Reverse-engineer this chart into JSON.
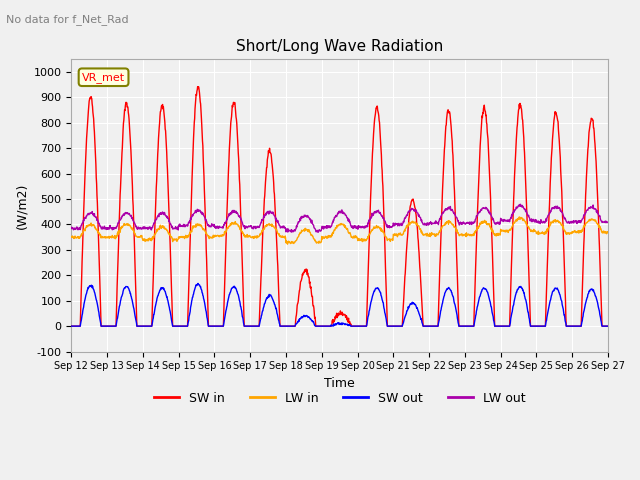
{
  "title": "Short/Long Wave Radiation",
  "subtitle": "No data for f_Net_Rad",
  "xlabel": "Time",
  "ylabel": "(W/m2)",
  "ylim": [
    -100,
    1050
  ],
  "n_days": 15,
  "xtick_labels": [
    "Sep 12",
    "Sep 13",
    "Sep 14",
    "Sep 15",
    "Sep 16",
    "Sep 17",
    "Sep 18",
    "Sep 19",
    "Sep 20",
    "Sep 21",
    "Sep 22",
    "Sep 23",
    "Sep 24",
    "Sep 25",
    "Sep 26",
    "Sep 27"
  ],
  "ytick_labels": [
    -100,
    0,
    100,
    200,
    300,
    400,
    500,
    600,
    700,
    800,
    900,
    1000
  ],
  "colors": {
    "SW_in": "#FF0000",
    "LW_in": "#FFA500",
    "SW_out": "#0000FF",
    "LW_out": "#AA00AA"
  },
  "legend_label": "VR_met",
  "legend_items": [
    "SW in",
    "LW in",
    "SW out",
    "LW out"
  ],
  "sw_in_peaks": [
    900,
    880,
    870,
    940,
    880,
    690,
    220,
    50,
    860,
    500,
    850,
    860,
    870,
    840,
    820
  ],
  "lw_in_vals": [
    350,
    350,
    340,
    350,
    355,
    350,
    330,
    350,
    340,
    360,
    360,
    360,
    375,
    365,
    370
  ],
  "sw_out_peaks": [
    160,
    155,
    150,
    165,
    155,
    120,
    40,
    10,
    150,
    90,
    150,
    150,
    155,
    150,
    145
  ],
  "lw_out_vals": [
    385,
    385,
    385,
    395,
    390,
    390,
    375,
    390,
    390,
    400,
    405,
    405,
    415,
    410,
    410
  ],
  "sunrise": 6.0,
  "sunset": 20.0,
  "background_color": "#f0f0f0",
  "grid_color": "#ffffff"
}
